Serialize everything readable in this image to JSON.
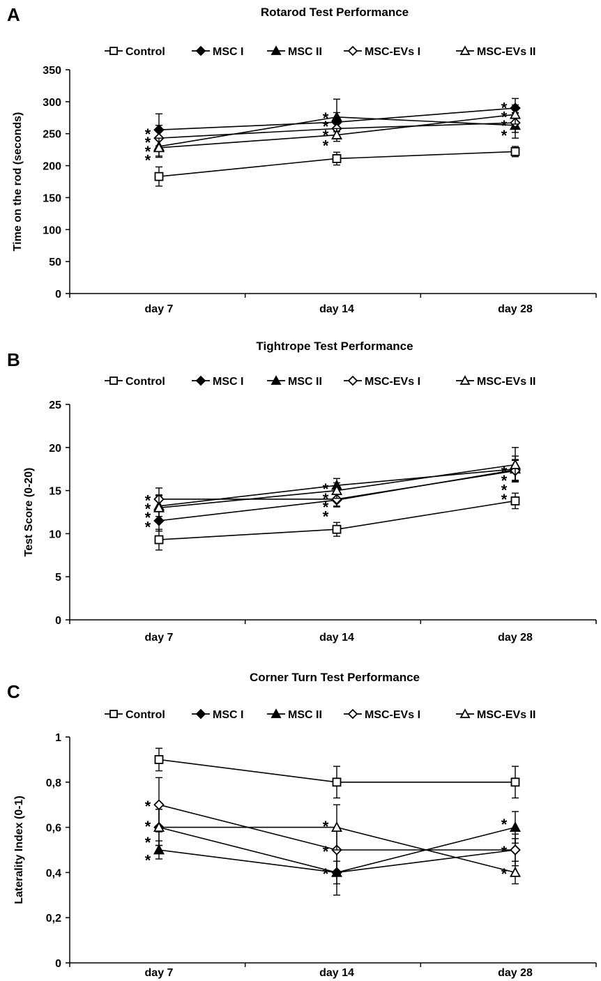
{
  "panels": [
    {
      "letter": "A",
      "title": "Rotarod Test Performance",
      "legend": [
        "Control",
        "MSC I",
        "MSC II",
        "MSC-EVs I",
        "MSC-EVs II"
      ],
      "chart_data": {
        "type": "line",
        "title": "Rotarod Test Performance",
        "xlabel": "",
        "ylabel": "Time on the rod (seconds)",
        "categories": [
          "day 7",
          "day 14",
          "day 28"
        ],
        "ylim": [
          0,
          350
        ],
        "yticks": [
          0,
          50,
          100,
          150,
          200,
          250,
          300,
          350
        ],
        "ytick_labels": [
          "0",
          "50",
          "100",
          "150",
          "200",
          "250",
          "300",
          "350"
        ],
        "series": [
          {
            "name": "Control",
            "marker": "square-open",
            "values": [
              183,
              211,
              222
            ],
            "err": [
              15,
              10,
              8
            ]
          },
          {
            "name": "MSC I",
            "marker": "diamond-filled",
            "values": [
              256,
              268,
              290
            ],
            "err": [
              25,
              15,
              15
            ]
          },
          {
            "name": "MSC II",
            "marker": "triangle-filled",
            "values": [
              230,
              276,
              263
            ],
            "err": [
              15,
              28,
              20
            ]
          },
          {
            "name": "MSC-EVs I",
            "marker": "diamond-open",
            "values": [
              243,
              258,
              267
            ],
            "err": [
              20,
              15,
              15
            ]
          },
          {
            "name": "MSC-EVs II",
            "marker": "triangle-open",
            "values": [
              228,
              248,
              280
            ],
            "err": [
              15,
              10,
              15
            ]
          }
        ],
        "annotations": [
          {
            "x": "day 7",
            "text": "*",
            "y": 255
          },
          {
            "x": "day 7",
            "text": "*",
            "y": 242
          },
          {
            "x": "day 7",
            "text": "*",
            "y": 228
          },
          {
            "x": "day 7",
            "text": "*",
            "y": 214
          },
          {
            "x": "day 14",
            "text": "*",
            "y": 280
          },
          {
            "x": "day 14",
            "text": "*",
            "y": 267
          },
          {
            "x": "day 14",
            "text": "*",
            "y": 253
          },
          {
            "x": "day 14",
            "text": "*",
            "y": 237
          },
          {
            "x": "day 28",
            "text": "*",
            "y": 296
          },
          {
            "x": "day 28",
            "text": "*",
            "y": 282
          },
          {
            "x": "day 28",
            "text": "*",
            "y": 268
          },
          {
            "x": "day 28",
            "text": "*",
            "y": 253
          }
        ]
      }
    },
    {
      "letter": "B",
      "title": "Tightrope Test Performance",
      "legend": [
        "Control",
        "MSC I",
        "MSC II",
        "MSC-EVs I",
        "MSC-EVs II"
      ],
      "chart_data": {
        "type": "line",
        "title": "Tightrope Test Performance",
        "xlabel": "",
        "ylabel": "Test Score (0-20)",
        "categories": [
          "day 7",
          "day 14",
          "day 28"
        ],
        "ylim": [
          0,
          25
        ],
        "yticks": [
          0,
          5,
          10,
          15,
          20,
          25
        ],
        "ytick_labels": [
          "0",
          "5",
          "10",
          "15",
          "20",
          "25"
        ],
        "series": [
          {
            "name": "Control",
            "marker": "square-open",
            "values": [
              9.3,
              10.5,
              13.8
            ],
            "err": [
              1.2,
              0.8,
              0.9
            ]
          },
          {
            "name": "MSC I",
            "marker": "diamond-filled",
            "values": [
              11.5,
              13.9,
              17.4
            ],
            "err": [
              1.2,
              0.8,
              1.2
            ]
          },
          {
            "name": "MSC II",
            "marker": "triangle-filled",
            "values": [
              13.2,
              15.6,
              17.5
            ],
            "err": [
              1.2,
              0.8,
              1.5
            ]
          },
          {
            "name": "MSC-EVs I",
            "marker": "diamond-open",
            "values": [
              14.0,
              14.0,
              17.3
            ],
            "err": [
              1.3,
              0.8,
              1.2
            ]
          },
          {
            "name": "MSC-EVs II",
            "marker": "triangle-open",
            "values": [
              13.0,
              15.0,
              18.0
            ],
            "err": [
              1.5,
              0.9,
              2.0
            ]
          }
        ],
        "annotations": [
          {
            "x": "day 7",
            "text": "*",
            "y": 14.3
          },
          {
            "x": "day 7",
            "text": "*",
            "y": 13.3
          },
          {
            "x": "day 7",
            "text": "*",
            "y": 12.3
          },
          {
            "x": "day 7",
            "text": "*",
            "y": 11.2
          },
          {
            "x": "day 14",
            "text": "*",
            "y": 15.6
          },
          {
            "x": "day 14",
            "text": "*",
            "y": 14.5
          },
          {
            "x": "day 14",
            "text": "*",
            "y": 13.5
          },
          {
            "x": "day 14",
            "text": "*",
            "y": 12.4
          },
          {
            "x": "day 28",
            "text": "*",
            "y": 17.6
          },
          {
            "x": "day 28",
            "text": "*",
            "y": 16.6
          },
          {
            "x": "day 28",
            "text": "*",
            "y": 15.5
          },
          {
            "x": "day 28",
            "text": "*",
            "y": 14.4
          }
        ]
      }
    },
    {
      "letter": "C",
      "title": "Corner Turn Test Performance",
      "legend": [
        "Control",
        "MSC I",
        "MSC II",
        "MSC-EVs I",
        "MSC-EVs II"
      ],
      "chart_data": {
        "type": "line",
        "title": "Corner Turn Test Performance",
        "xlabel": "",
        "ylabel": "Laterality Index (0-1)",
        "categories": [
          "day 7",
          "day 14",
          "day 28"
        ],
        "ylim": [
          0,
          1
        ],
        "yticks": [
          0,
          0.2,
          0.4,
          0.6,
          0.8,
          1
        ],
        "ytick_labels": [
          "0",
          "0,2",
          "0,4",
          "0,6",
          "0,8",
          "1"
        ],
        "series": [
          {
            "name": "Control",
            "marker": "square-open",
            "values": [
              0.9,
              0.8,
              0.8
            ],
            "err": [
              0.05,
              0.07,
              0.07
            ]
          },
          {
            "name": "MSC I",
            "marker": "diamond-filled",
            "values": [
              0.6,
              0.4,
              0.5
            ],
            "err": [
              0.08,
              0.1,
              0.07
            ]
          },
          {
            "name": "MSC II",
            "marker": "triangle-filled",
            "values": [
              0.5,
              0.4,
              0.6
            ],
            "err": [
              0.04,
              0.05,
              0.07
            ]
          },
          {
            "name": "MSC-EVs I",
            "marker": "diamond-open",
            "values": [
              0.7,
              0.5,
              0.5
            ],
            "err": [
              0.12,
              0.1,
              0.05
            ]
          },
          {
            "name": "MSC-EVs II",
            "marker": "triangle-open",
            "values": [
              0.6,
              0.6,
              0.4
            ],
            "err": [
              0.08,
              0.1,
              0.05
            ]
          }
        ],
        "annotations": [
          {
            "x": "day 7",
            "text": "*",
            "y": 0.71
          },
          {
            "x": "day 7",
            "text": "*",
            "y": 0.62
          },
          {
            "x": "day 7",
            "text": "*",
            "y": 0.55
          },
          {
            "x": "day 7",
            "text": "*",
            "y": 0.47
          },
          {
            "x": "day 14",
            "text": "*",
            "y": 0.62
          },
          {
            "x": "day 14",
            "text": "*",
            "y": 0.51
          },
          {
            "x": "day 14",
            "text": "*",
            "y": 0.41
          },
          {
            "x": "day 28",
            "text": "*",
            "y": 0.63
          },
          {
            "x": "day 28",
            "text": "*",
            "y": 0.51
          },
          {
            "x": "day 28",
            "text": "*",
            "y": 0.41
          }
        ]
      }
    }
  ]
}
